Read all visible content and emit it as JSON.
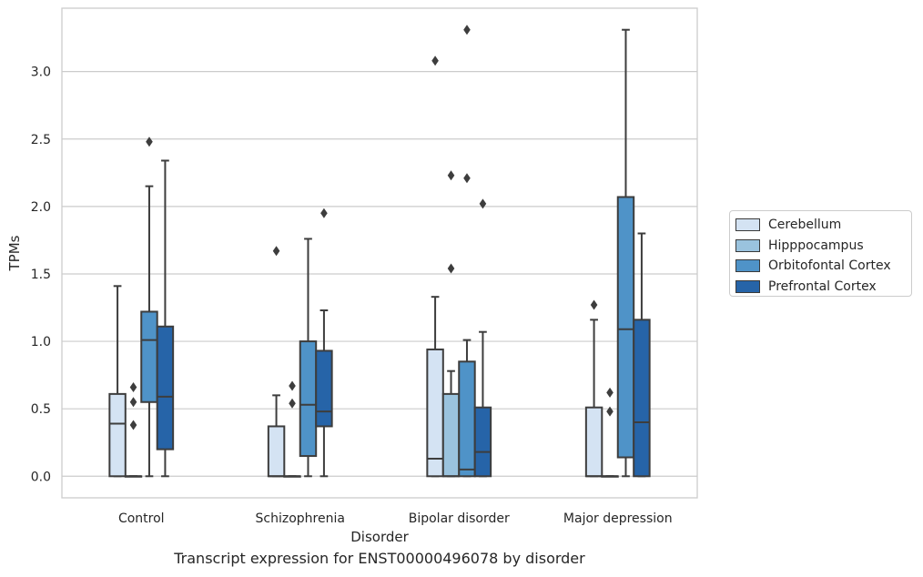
{
  "chart_data": {
    "type": "box",
    "categories": [
      "Control",
      "Schizophrenia",
      "Bipolar disorder",
      "Major depression"
    ],
    "xlabel": "Disorder",
    "ylabel": "TPMs",
    "ylim": [
      -0.16,
      3.47
    ],
    "yticks": [
      "0.0",
      "0.5",
      "1.0",
      "1.5",
      "2.0",
      "2.5",
      "3.0"
    ],
    "grid": true,
    "legend_position": "right",
    "series": [
      {
        "name": "Cerebellum",
        "color": "#d4e3f3",
        "boxes": [
          {
            "q1": 0.0,
            "median": 0.39,
            "q3": 0.61,
            "whisker_low": 0.0,
            "whisker_high": 1.41,
            "outliers": []
          },
          {
            "q1": 0.0,
            "median": 0.0,
            "q3": 0.37,
            "whisker_low": 0.0,
            "whisker_high": 0.6,
            "outliers": [
              1.67
            ]
          },
          {
            "q1": 0.0,
            "median": 0.13,
            "q3": 0.94,
            "whisker_low": 0.0,
            "whisker_high": 1.33,
            "outliers": [
              3.08
            ]
          },
          {
            "q1": 0.0,
            "median": 0.0,
            "q3": 0.51,
            "whisker_low": 0.0,
            "whisker_high": 1.16,
            "outliers": [
              1.27
            ]
          }
        ]
      },
      {
        "name": "Hipppocampus",
        "color": "#9ac3de",
        "boxes": [
          {
            "q1": 0.0,
            "median": 0.0,
            "q3": 0.0,
            "whisker_low": 0.0,
            "whisker_high": 0.0,
            "outliers": [
              0.38,
              0.55,
              0.66
            ]
          },
          {
            "q1": 0.0,
            "median": 0.0,
            "q3": 0.0,
            "whisker_low": 0.0,
            "whisker_high": 0.0,
            "outliers": [
              0.54,
              0.67
            ]
          },
          {
            "q1": 0.0,
            "median": 0.0,
            "q3": 0.61,
            "whisker_low": 0.0,
            "whisker_high": 0.78,
            "outliers": [
              1.54,
              2.23
            ]
          },
          {
            "q1": 0.0,
            "median": 0.0,
            "q3": 0.0,
            "whisker_low": 0.0,
            "whisker_high": 0.0,
            "outliers": [
              0.48,
              0.62
            ]
          }
        ]
      },
      {
        "name": "Orbitofontal Cortex",
        "color": "#4f93c8",
        "boxes": [
          {
            "q1": 0.55,
            "median": 1.01,
            "q3": 1.22,
            "whisker_low": 0.0,
            "whisker_high": 2.15,
            "outliers": [
              2.48
            ]
          },
          {
            "q1": 0.15,
            "median": 0.53,
            "q3": 1.0,
            "whisker_low": 0.0,
            "whisker_high": 1.76,
            "outliers": []
          },
          {
            "q1": 0.0,
            "median": 0.05,
            "q3": 0.85,
            "whisker_low": 0.0,
            "whisker_high": 1.01,
            "outliers": [
              2.21,
              3.31
            ]
          },
          {
            "q1": 0.14,
            "median": 1.09,
            "q3": 2.07,
            "whisker_low": 0.0,
            "whisker_high": 3.31,
            "outliers": []
          }
        ]
      },
      {
        "name": "Prefrontal Cortex",
        "color": "#2664a8",
        "boxes": [
          {
            "q1": 0.2,
            "median": 0.59,
            "q3": 1.11,
            "whisker_low": 0.0,
            "whisker_high": 2.34,
            "outliers": []
          },
          {
            "q1": 0.37,
            "median": 0.48,
            "q3": 0.93,
            "whisker_low": 0.0,
            "whisker_high": 1.23,
            "outliers": [
              1.95
            ]
          },
          {
            "q1": 0.0,
            "median": 0.18,
            "q3": 0.51,
            "whisker_low": 0.0,
            "whisker_high": 1.07,
            "outliers": [
              2.02
            ]
          },
          {
            "q1": 0.0,
            "median": 0.4,
            "q3": 1.16,
            "whisker_low": 0.0,
            "whisker_high": 1.8,
            "outliers": []
          }
        ]
      }
    ]
  },
  "caption": "Transcript expression for ENST00000496078 by disorder"
}
